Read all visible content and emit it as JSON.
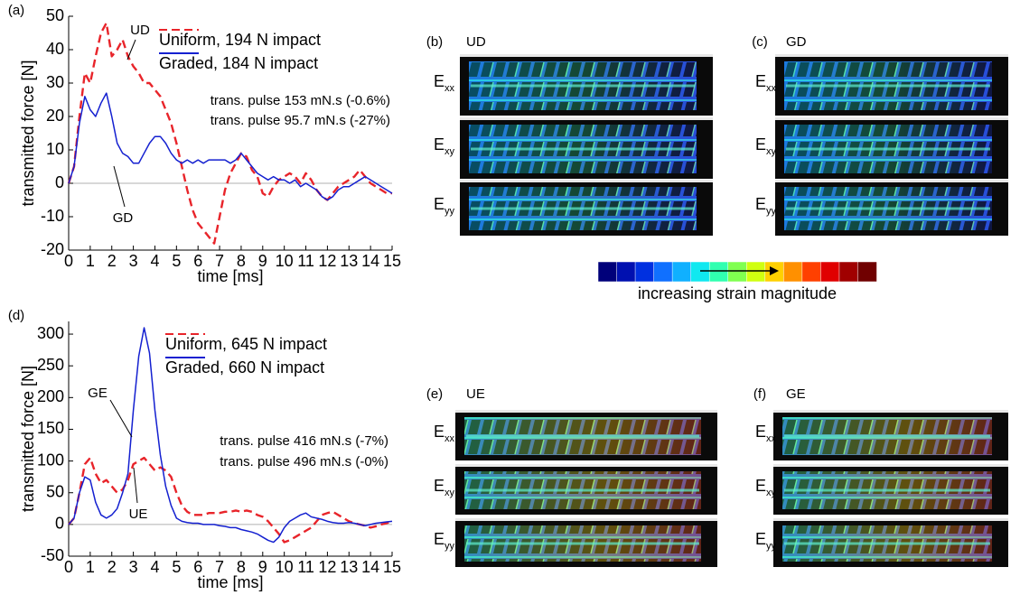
{
  "chart_data": [
    {
      "type": "line",
      "panel_label": "(a)",
      "y_label": "transmitted force [N]",
      "x_label": "time [ms]",
      "x": [
        0,
        0.25,
        0.5,
        0.75,
        1,
        1.25,
        1.5,
        1.75,
        2,
        2.25,
        2.5,
        2.75,
        3,
        3.25,
        3.5,
        3.75,
        4,
        4.25,
        4.5,
        4.75,
        5,
        5.25,
        5.5,
        5.75,
        6,
        6.25,
        6.5,
        6.75,
        7,
        7.25,
        7.5,
        7.75,
        8,
        8.25,
        8.5,
        8.75,
        9,
        9.25,
        9.5,
        9.75,
        10,
        10.25,
        10.5,
        10.75,
        11,
        11.25,
        11.5,
        11.75,
        12,
        12.25,
        12.5,
        12.75,
        13,
        13.25,
        13.5,
        13.75,
        14,
        14.25,
        14.5,
        14.75,
        15
      ],
      "series": [
        {
          "name": "Uniform, 194 N impact",
          "color": "#e8242a",
          "style": "dashed",
          "values": [
            0,
            5,
            20,
            33,
            30,
            38,
            45,
            48,
            38,
            40,
            43,
            38,
            35,
            33,
            30,
            30,
            28,
            26,
            22,
            18,
            12,
            5,
            -2,
            -8,
            -12,
            -14,
            -16,
            -18,
            -10,
            -2,
            3,
            6,
            9,
            8,
            4,
            2,
            -3,
            -4,
            -1,
            1,
            2,
            3,
            2,
            0,
            3,
            1,
            -2,
            -4,
            -5,
            -3,
            -1,
            0,
            1,
            2,
            4,
            2,
            0,
            -1,
            -2,
            -3,
            -3
          ]
        },
        {
          "name": "Graded, 184 N impact",
          "color": "#1420d0",
          "style": "solid",
          "values": [
            0,
            5,
            18,
            26,
            22,
            20,
            24,
            27,
            20,
            12,
            9,
            8,
            6,
            6,
            9,
            12,
            14,
            14,
            12,
            9,
            7,
            6,
            7,
            6,
            7,
            6,
            7,
            7,
            7,
            7,
            6,
            7,
            9,
            7,
            5,
            3,
            2,
            1,
            2,
            1,
            1,
            0,
            1,
            -1,
            0,
            -1,
            -2,
            -4,
            -5,
            -4,
            -2,
            -1,
            -1,
            0,
            1,
            2,
            1,
            0,
            -1,
            -2,
            -3
          ]
        }
      ],
      "xlim": [
        0,
        15
      ],
      "xticks": [
        0,
        1,
        2,
        3,
        4,
        5,
        6,
        7,
        8,
        9,
        10,
        11,
        12,
        13,
        14,
        15
      ],
      "ylim": [
        -20,
        50
      ],
      "yticks": [
        -20,
        -10,
        0,
        10,
        20,
        30,
        40,
        50
      ],
      "zero_line": true,
      "annotations": [
        {
          "text": "UD"
        },
        {
          "text": "GD"
        },
        {
          "text": "trans. pulse 153 mN.s (-0.6%)",
          "color": "#e8242a"
        },
        {
          "text": "trans. pulse 95.7 mN.s (-27%)",
          "color": "#1420d0"
        }
      ]
    },
    {
      "type": "line",
      "panel_label": "(d)",
      "y_label": "transmitted force [N]",
      "x_label": "time [ms]",
      "x": [
        0,
        0.25,
        0.5,
        0.75,
        1,
        1.25,
        1.5,
        1.75,
        2,
        2.25,
        2.5,
        2.75,
        3,
        3.25,
        3.5,
        3.75,
        4,
        4.25,
        4.5,
        4.75,
        5,
        5.25,
        5.5,
        5.75,
        6,
        6.25,
        6.5,
        6.75,
        7,
        7.25,
        7.5,
        7.75,
        8,
        8.25,
        8.5,
        8.75,
        9,
        9.25,
        9.5,
        9.75,
        10,
        10.25,
        10.5,
        10.75,
        11,
        11.25,
        11.5,
        11.75,
        12,
        12.25,
        12.5,
        12.75,
        13,
        13.25,
        13.5,
        13.75,
        14,
        14.25,
        14.5,
        14.75,
        15
      ],
      "series": [
        {
          "name": "Uniform, 645 N impact",
          "color": "#e8242a",
          "style": "dashed",
          "values": [
            0,
            10,
            50,
            95,
            105,
            80,
            65,
            70,
            60,
            50,
            55,
            70,
            95,
            100,
            105,
            95,
            85,
            90,
            85,
            75,
            50,
            30,
            20,
            15,
            15,
            15,
            18,
            18,
            18,
            20,
            20,
            22,
            20,
            22,
            20,
            15,
            12,
            5,
            -5,
            -15,
            -28,
            -25,
            -20,
            -15,
            -10,
            -5,
            5,
            15,
            18,
            20,
            15,
            10,
            5,
            2,
            0,
            -2,
            -5,
            -3,
            0,
            2,
            5
          ]
        },
        {
          "name": "Graded, 660 N impact",
          "color": "#1420d0",
          "style": "solid",
          "values": [
            0,
            10,
            50,
            75,
            70,
            35,
            15,
            10,
            15,
            25,
            50,
            80,
            180,
            265,
            310,
            270,
            180,
            110,
            60,
            30,
            10,
            5,
            3,
            2,
            2,
            0,
            0,
            0,
            -2,
            -3,
            -5,
            -5,
            -8,
            -10,
            -12,
            -15,
            -20,
            -25,
            -28,
            -20,
            -5,
            5,
            10,
            15,
            18,
            12,
            10,
            8,
            5,
            3,
            2,
            2,
            3,
            2,
            0,
            -2,
            0,
            2,
            3,
            4,
            5
          ]
        }
      ],
      "xlim": [
        0,
        15
      ],
      "xticks": [
        0,
        1,
        2,
        3,
        4,
        5,
        6,
        7,
        8,
        9,
        10,
        11,
        12,
        13,
        14,
        15
      ],
      "ylim": [
        -50,
        320
      ],
      "yticks": [
        -50,
        0,
        50,
        100,
        150,
        200,
        250,
        300
      ],
      "zero_line": true,
      "annotations": [
        {
          "text": "GE"
        },
        {
          "text": "UE"
        },
        {
          "text": "trans. pulse 416 mN.s (-7%)",
          "color": "#e8242a"
        },
        {
          "text": "trans. pulse 496 mN.s (-0%)",
          "color": "#1420d0"
        }
      ]
    }
  ],
  "image_panels": [
    {
      "label": "(b)",
      "title": "UD",
      "rows": [
        {
          "main": "E",
          "sub": "xx"
        },
        {
          "main": "E",
          "sub": "xy"
        },
        {
          "main": "E",
          "sub": "yy"
        }
      ]
    },
    {
      "label": "(c)",
      "title": "GD",
      "rows": [
        {
          "main": "E",
          "sub": "xx"
        },
        {
          "main": "E",
          "sub": "xy"
        },
        {
          "main": "E",
          "sub": "yy"
        }
      ]
    },
    {
      "label": "(e)",
      "title": "UE",
      "rows": [
        {
          "main": "E",
          "sub": "xx"
        },
        {
          "main": "E",
          "sub": "xy"
        },
        {
          "main": "E",
          "sub": "yy"
        }
      ]
    },
    {
      "label": "(f)",
      "title": "GE",
      "rows": [
        {
          "main": "E",
          "sub": "xx"
        },
        {
          "main": "E",
          "sub": "xy"
        },
        {
          "main": "E",
          "sub": "yy"
        }
      ]
    }
  ],
  "colorbar": {
    "caption": "increasing strain magnitude"
  }
}
